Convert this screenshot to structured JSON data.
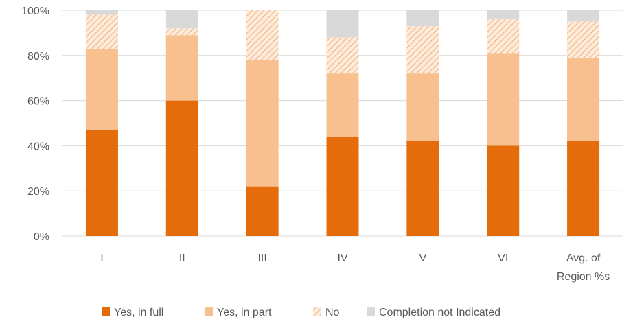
{
  "chart_data": {
    "type": "bar",
    "stacked": true,
    "categories": [
      "I",
      "II",
      "III",
      "IV",
      "V",
      "VI",
      "Avg. of Region %s"
    ],
    "category_label_lines": [
      [
        "I"
      ],
      [
        "II"
      ],
      [
        "III"
      ],
      [
        "IV"
      ],
      [
        "V"
      ],
      [
        "VI"
      ],
      [
        "Avg. of",
        "Region %s"
      ]
    ],
    "series": [
      {
        "name": "Yes, in full",
        "color": "#E46C0A",
        "pattern": "solid",
        "values": [
          47,
          60,
          22,
          44,
          42,
          40,
          42
        ]
      },
      {
        "name": "Yes, in part",
        "color": "#F8C08E",
        "pattern": "solid",
        "values": [
          36,
          29,
          56,
          28,
          30,
          41,
          37
        ]
      },
      {
        "name": "No",
        "color": "#F8C08E",
        "pattern": "hatched",
        "values": [
          15,
          3,
          22,
          16,
          21,
          15,
          16
        ]
      },
      {
        "name": "Completion not Indicated",
        "color": "#D9D9D9",
        "pattern": "solid",
        "values": [
          2,
          8,
          0,
          12,
          7,
          4,
          5
        ]
      }
    ],
    "ylim": [
      0,
      100
    ],
    "yticks": [
      "0%",
      "20%",
      "40%",
      "60%",
      "80%",
      "100%"
    ],
    "grid": true,
    "legend_position": "bottom",
    "title": "",
    "xlabel": "",
    "ylabel": ""
  }
}
